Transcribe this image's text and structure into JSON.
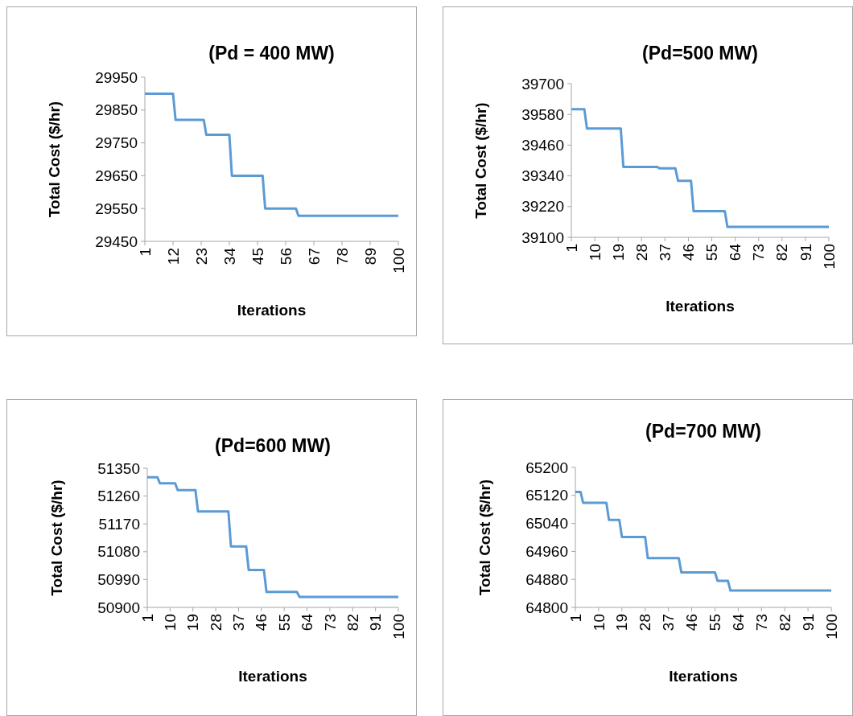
{
  "chart_data": [
    {
      "type": "line",
      "title": "(Pd = 400 MW)",
      "xlabel": "Iterations",
      "ylabel": "Total Cost ($/hr)",
      "color": "#5b9bd5",
      "x": [
        1,
        12,
        13,
        24,
        25,
        34,
        35,
        47,
        48,
        60,
        61,
        100
      ],
      "values": [
        29900,
        29900,
        29820,
        29820,
        29775,
        29775,
        29650,
        29650,
        29550,
        29550,
        29528,
        29528
      ],
      "xlim": [
        1,
        100
      ],
      "xticks": [
        1,
        12,
        23,
        34,
        45,
        56,
        67,
        78,
        89,
        100
      ],
      "ylim": [
        29450,
        29950
      ],
      "yticks": [
        29450,
        29550,
        29650,
        29750,
        29850,
        29950
      ],
      "grid": false
    },
    {
      "type": "line",
      "title": "(Pd=500 MW)",
      "xlabel": "Iterations",
      "ylabel": "Total Cost ($/hr)",
      "color": "#5b9bd5",
      "x": [
        1,
        6,
        7,
        20,
        21,
        34,
        35,
        41,
        42,
        47,
        48,
        60,
        61,
        100
      ],
      "values": [
        39600,
        39600,
        39525,
        39525,
        39375,
        39375,
        39369,
        39369,
        39321,
        39321,
        39202,
        39202,
        39141,
        39141
      ],
      "xlim": [
        1,
        100
      ],
      "xticks": [
        1,
        10,
        19,
        28,
        37,
        46,
        55,
        64,
        73,
        82,
        91,
        100
      ],
      "ylim": [
        39100,
        39700
      ],
      "yticks": [
        39100,
        39220,
        39340,
        39460,
        39580,
        39700
      ],
      "grid": false
    },
    {
      "type": "line",
      "title": "(Pd=600 MW)",
      "xlabel": "Iterations",
      "ylabel": "Total Cost ($/hr)",
      "color": "#5b9bd5",
      "x": [
        1,
        5,
        6,
        12,
        13,
        20,
        21,
        33,
        34,
        40,
        41,
        47,
        48,
        60,
        61,
        100
      ],
      "values": [
        51321,
        51321,
        51301,
        51301,
        51279,
        51279,
        51210,
        51210,
        51097,
        51097,
        51021,
        51021,
        50950,
        50950,
        50934,
        50934
      ],
      "xlim": [
        1,
        100
      ],
      "xticks": [
        1,
        10,
        19,
        28,
        37,
        46,
        55,
        64,
        73,
        82,
        91,
        100
      ],
      "ylim": [
        50900,
        51350
      ],
      "yticks": [
        50900,
        50990,
        51080,
        51170,
        51260,
        51350
      ],
      "grid": false
    },
    {
      "type": "line",
      "title": "(Pd=700 MW)",
      "xlabel": "Iterations",
      "ylabel": "Total Cost ($/hr)",
      "color": "#5b9bd5",
      "x": [
        1,
        3,
        4,
        13,
        14,
        18,
        19,
        28,
        29,
        41,
        42,
        55,
        56,
        60,
        61,
        100
      ],
      "values": [
        65130,
        65130,
        65099,
        65099,
        65050,
        65050,
        65001,
        65001,
        64941,
        64941,
        64900,
        64900,
        64876,
        64876,
        64848,
        64848
      ],
      "xlim": [
        1,
        100
      ],
      "xticks": [
        1,
        10,
        19,
        28,
        37,
        46,
        55,
        64,
        73,
        82,
        91,
        100
      ],
      "ylim": [
        64800,
        65200
      ],
      "yticks": [
        64800,
        64880,
        64960,
        65040,
        65120,
        65200
      ],
      "grid": false
    }
  ]
}
